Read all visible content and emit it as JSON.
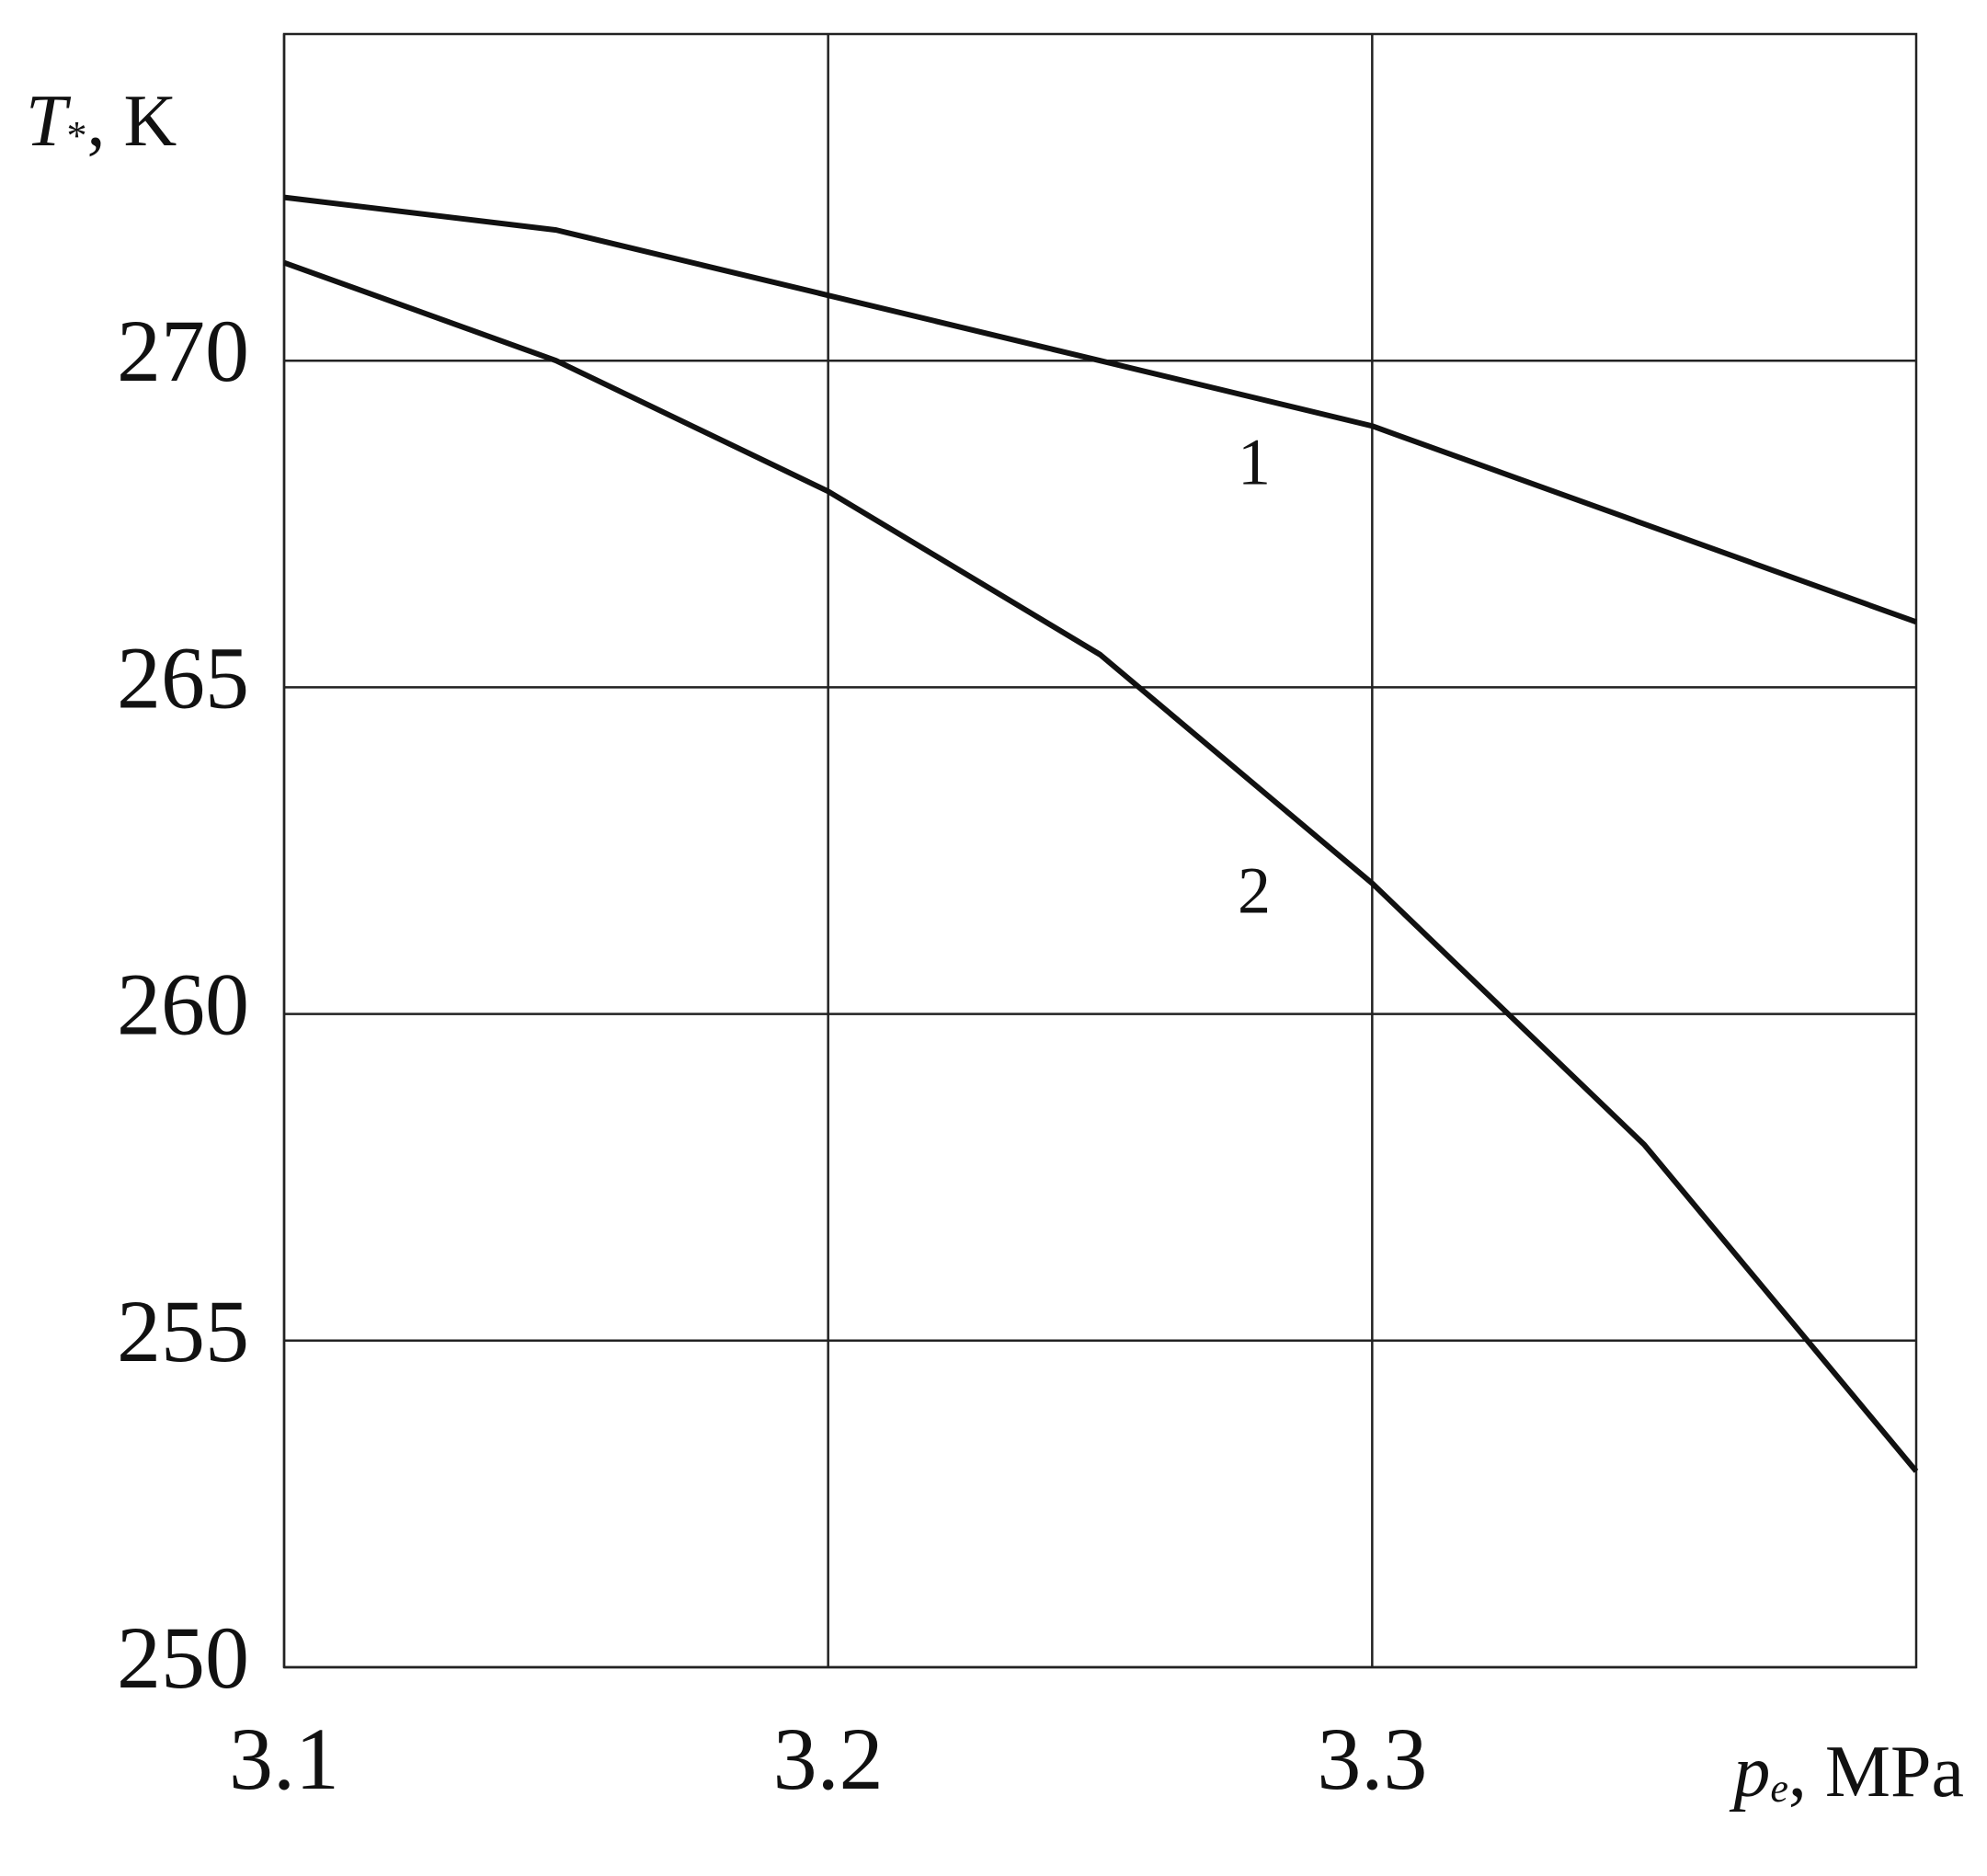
{
  "chart_data": {
    "type": "line",
    "y_label": [
      "T",
      "*",
      ", K"
    ],
    "x_label": [
      "p",
      "e",
      ", MPa"
    ],
    "x": [
      3.1,
      3.15,
      3.2,
      3.25,
      3.3,
      3.35,
      3.4
    ],
    "series": [
      {
        "name": "1",
        "color": "#111111",
        "values": [
          272.5,
          272.0,
          271.0,
          270.0,
          269.0,
          267.5,
          266.0
        ]
      },
      {
        "name": "2",
        "color": "#111111",
        "values": [
          271.5,
          270.0,
          268.0,
          265.5,
          262.0,
          258.0,
          253.0
        ]
      }
    ],
    "xlim": [
      3.1,
      3.4
    ],
    "xticks": [
      3.1,
      3.2,
      3.3
    ],
    "ylim": [
      250,
      275
    ],
    "yticks": [
      250,
      255,
      260,
      265,
      270
    ],
    "grid": true
  }
}
